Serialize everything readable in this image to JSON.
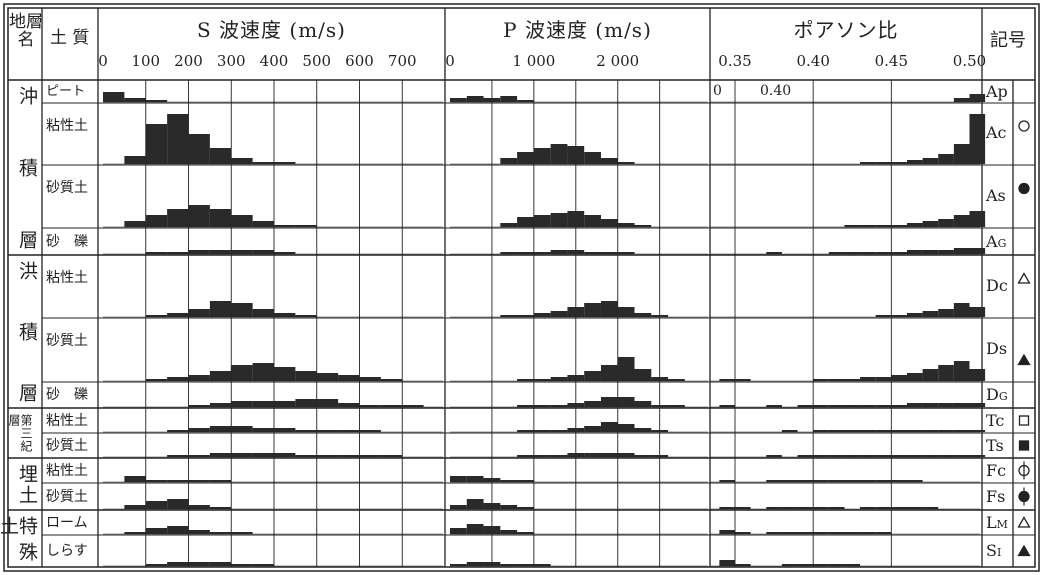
{
  "header": {
    "stratum": "地層名",
    "soil": "土 質",
    "symbol": "記号"
  },
  "panels": [
    {
      "title": "S 波速度 (m/s)",
      "xlim": [
        0,
        800
      ],
      "xticks": [
        0,
        100,
        200,
        300,
        400,
        500,
        600,
        700
      ],
      "grid": [
        100,
        200,
        300,
        400,
        500,
        600,
        700
      ],
      "bins": [
        0,
        50,
        100,
        150,
        200,
        250,
        300,
        350,
        400,
        450,
        500,
        550,
        600,
        650,
        700,
        750,
        800
      ]
    },
    {
      "title": "P 波速度 (m/s)",
      "xlim": [
        0,
        3100
      ],
      "xticks": [
        0,
        {
          "value": 1000,
          "label": "1 000"
        },
        {
          "value": 2000,
          "label": "2 000"
        }
      ],
      "grid": [
        500,
        1000,
        1500,
        2000,
        2500
      ],
      "bins": [
        0,
        200,
        400,
        600,
        800,
        1000,
        1200,
        1400,
        1600,
        1800,
        2000,
        2200,
        2400,
        2600,
        2800,
        3000
      ]
    },
    {
      "title": "ポアソン比",
      "xlim": [
        0.334,
        0.508
      ],
      "xticks": [
        0.35,
        {
          "value": 0.4,
          "label": "0.40"
        },
        0.45,
        {
          "value": 0.5,
          "label": "0.50"
        }
      ],
      "grid": [
        0.35,
        0.4,
        0.45
      ],
      "bins": [
        0.34,
        0.35,
        0.36,
        0.37,
        0.38,
        0.39,
        0.4,
        0.41,
        0.42,
        0.43,
        0.44,
        0.45,
        0.46,
        0.47,
        0.48,
        0.49,
        0.5,
        0.51
      ],
      "notes": [
        "0",
        "0.40"
      ]
    }
  ],
  "groups": [
    {
      "name": "沖積層",
      "rows": [
        0,
        3
      ]
    },
    {
      "name": "洪積層",
      "rows": [
        4,
        6
      ]
    },
    {
      "name": "第三紀層",
      "rows": [
        7,
        8
      ]
    },
    {
      "name": "埋土",
      "rows": [
        9,
        10
      ]
    },
    {
      "name": "特殊土",
      "rows": [
        11,
        12
      ]
    }
  ],
  "rows": [
    {
      "soil": "ピート",
      "code": "Ap",
      "marker": "none",
      "hist": [
        [
          5,
          2,
          1,
          0,
          0,
          0,
          0,
          0,
          0,
          0,
          0,
          0,
          0,
          0,
          0,
          0
        ],
        [
          2,
          3,
          2,
          3,
          1,
          0,
          0,
          0,
          0,
          0,
          0,
          0,
          0,
          0,
          0
        ],
        [
          0,
          0,
          0,
          0,
          0,
          0,
          0,
          0,
          0,
          0,
          0,
          0,
          0,
          0,
          0,
          2,
          4
        ]
      ]
    },
    {
      "soil": "粘性土",
      "code": "Ac",
      "marker": "circle-open",
      "hist": [
        [
          0,
          4,
          20,
          25,
          15,
          8,
          3,
          1,
          1,
          0,
          0,
          0,
          0,
          0,
          0,
          0
        ],
        [
          0,
          0,
          0,
          3,
          6,
          8,
          10,
          9,
          6,
          3,
          1,
          0,
          0,
          0,
          0
        ],
        [
          0,
          0,
          0,
          0,
          0,
          0,
          0,
          0,
          0,
          1,
          1,
          1,
          2,
          3,
          5,
          10,
          25
        ]
      ]
    },
    {
      "soil": "砂質土",
      "code": "As",
      "marker": "circle",
      "hist": [
        [
          0,
          3,
          6,
          9,
          11,
          9,
          6,
          3,
          1,
          1,
          0,
          0,
          0,
          0,
          0,
          0
        ],
        [
          0,
          0,
          0,
          2,
          5,
          6,
          7,
          8,
          6,
          4,
          2,
          1,
          0,
          0,
          0
        ],
        [
          0,
          0,
          0,
          0,
          0,
          0,
          0,
          0,
          1,
          1,
          1,
          1,
          2,
          3,
          4,
          6,
          8
        ]
      ]
    },
    {
      "soil": "砂　礫",
      "code": "A",
      "code_sub": "G",
      "marker": "none",
      "hist": [
        [
          0,
          0,
          1,
          1,
          2,
          2,
          2,
          2,
          1,
          0,
          0,
          0,
          0,
          0,
          0,
          0
        ],
        [
          0,
          0,
          0,
          1,
          1,
          1,
          2,
          2,
          1,
          1,
          1,
          0,
          0,
          0,
          0
        ],
        [
          0,
          0,
          0,
          1,
          0,
          0,
          0,
          1,
          1,
          1,
          1,
          1,
          2,
          2,
          2,
          3,
          3
        ]
      ]
    },
    {
      "soil": "粘性土",
      "code": "Dc",
      "marker": "triangle-open",
      "hist": [
        [
          0,
          0,
          1,
          2,
          4,
          8,
          7,
          4,
          2,
          1,
          0,
          0,
          0,
          0,
          0,
          0
        ],
        [
          0,
          0,
          0,
          1,
          1,
          2,
          3,
          5,
          7,
          8,
          5,
          2,
          1,
          0,
          0
        ],
        [
          0,
          0,
          0,
          0,
          0,
          0,
          0,
          0,
          0,
          0,
          1,
          1,
          2,
          3,
          4,
          7,
          5
        ]
      ]
    },
    {
      "soil": "砂質土",
      "code": "Ds",
      "marker": "triangle",
      "hist": [
        [
          0,
          0,
          1,
          2,
          3,
          5,
          8,
          9,
          7,
          5,
          4,
          3,
          2,
          1,
          0,
          0
        ],
        [
          0,
          0,
          0,
          0,
          1,
          1,
          2,
          3,
          5,
          8,
          12,
          6,
          2,
          1,
          0
        ],
        [
          1,
          1,
          0,
          0,
          0,
          0,
          1,
          1,
          1,
          2,
          2,
          3,
          4,
          6,
          8,
          10,
          6
        ]
      ]
    },
    {
      "soil": "砂　礫",
      "code": "D",
      "code_sub": "G",
      "marker": "none",
      "hist": [
        [
          0,
          0,
          0,
          0,
          1,
          2,
          3,
          3,
          3,
          4,
          4,
          2,
          1,
          1,
          1,
          0
        ],
        [
          0,
          0,
          0,
          0,
          1,
          1,
          1,
          2,
          3,
          5,
          5,
          3,
          1,
          1,
          0
        ],
        [
          1,
          0,
          0,
          1,
          0,
          1,
          1,
          1,
          1,
          1,
          1,
          1,
          2,
          2,
          2,
          2,
          2
        ]
      ]
    },
    {
      "soil": "粘性土",
      "code": "Tc",
      "marker": "square-open",
      "hist": [
        [
          0,
          0,
          0,
          1,
          2,
          3,
          3,
          2,
          2,
          1,
          1,
          1,
          1,
          0,
          0,
          0
        ],
        [
          0,
          0,
          0,
          0,
          1,
          1,
          1,
          2,
          3,
          5,
          4,
          2,
          1,
          0,
          0
        ],
        [
          0,
          0,
          0,
          0,
          1,
          0,
          1,
          1,
          1,
          1,
          1,
          1,
          1,
          1,
          1,
          1,
          1
        ]
      ]
    },
    {
      "soil": "砂質土",
      "code": "Ts",
      "marker": "square",
      "hist": [
        [
          0,
          0,
          0,
          1,
          1,
          2,
          2,
          2,
          2,
          1,
          1,
          1,
          1,
          1,
          0,
          0
        ],
        [
          0,
          0,
          0,
          0,
          1,
          1,
          1,
          2,
          2,
          2,
          2,
          1,
          1,
          0,
          0
        ],
        [
          0,
          0,
          0,
          1,
          0,
          1,
          1,
          1,
          1,
          1,
          1,
          1,
          1,
          1,
          1,
          1,
          1
        ]
      ]
    },
    {
      "soil": "粘性土",
      "code": "Fc",
      "marker": "circle-open-bar",
      "hist": [
        [
          0,
          3,
          1,
          1,
          1,
          1,
          0,
          0,
          0,
          0,
          0,
          0,
          0,
          0,
          0,
          0
        ],
        [
          3,
          3,
          2,
          1,
          1,
          0,
          0,
          0,
          0,
          0,
          0,
          0,
          0,
          0,
          0
        ],
        [
          1,
          0,
          0,
          1,
          1,
          1,
          1,
          1,
          1,
          1,
          1,
          1,
          1,
          0,
          0,
          0,
          0
        ]
      ]
    },
    {
      "soil": "砂質土",
      "code": "Fs",
      "marker": "circle-bar",
      "hist": [
        [
          0,
          2,
          4,
          5,
          2,
          1,
          0,
          0,
          0,
          0,
          0,
          0,
          0,
          0,
          0,
          0
        ],
        [
          2,
          5,
          3,
          2,
          1,
          0,
          0,
          0,
          0,
          0,
          0,
          0,
          0,
          0,
          0
        ],
        [
          1,
          1,
          0,
          1,
          1,
          1,
          1,
          1,
          0,
          1,
          1,
          1,
          1,
          1,
          0,
          0,
          0
        ]
      ]
    },
    {
      "soil": "ローム",
      "code": "L",
      "code_sub": "M",
      "marker": "triangle-open",
      "hist": [
        [
          0,
          1,
          3,
          4,
          2,
          1,
          1,
          0,
          0,
          0,
          0,
          0,
          0,
          0,
          0,
          0
        ],
        [
          3,
          5,
          4,
          2,
          1,
          0,
          0,
          0,
          0,
          0,
          0,
          0,
          0,
          0,
          0
        ],
        [
          2,
          1,
          0,
          1,
          1,
          1,
          1,
          1,
          1,
          1,
          1,
          0,
          0,
          0,
          0,
          0,
          0
        ]
      ]
    },
    {
      "soil": "しらす",
      "code": "S",
      "code_sub": "I",
      "marker": "triangle",
      "hist": [
        [
          0,
          0,
          1,
          2,
          2,
          2,
          1,
          1,
          0,
          0,
          0,
          0,
          0,
          0,
          0,
          0
        ],
        [
          1,
          2,
          2,
          1,
          1,
          1,
          0,
          0,
          0,
          0,
          0,
          0,
          0,
          0,
          0
        ],
        [
          3,
          1,
          0,
          0,
          1,
          1,
          1,
          1,
          1,
          0,
          0,
          0,
          0,
          0,
          0,
          0,
          0
        ]
      ]
    }
  ]
}
